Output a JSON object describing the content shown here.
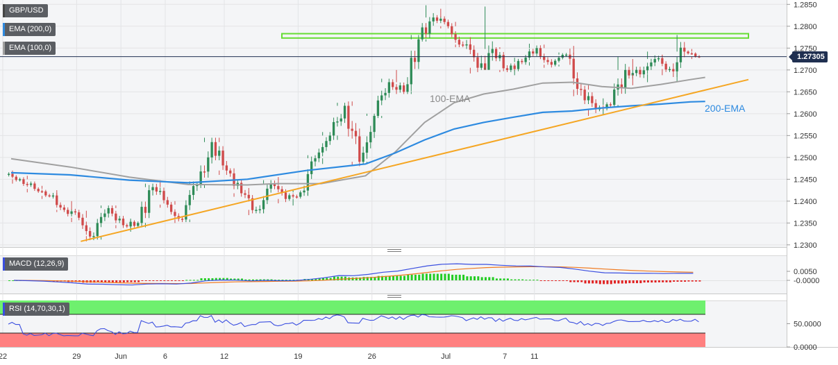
{
  "header": {
    "symbol": "GBP/USD",
    "ema200_label": "EMA (200,0)",
    "ema100_label": "EMA (100,0)"
  },
  "annotations": {
    "ema100": "100-EMA",
    "ema200": "200-EMA"
  },
  "colors": {
    "up": "#2e8b57",
    "down": "#d04a4a",
    "ema100": "#a0a0a0",
    "ema200": "#2d8ae0",
    "trend": "#f5a623",
    "resistance": "#66dd33",
    "macd": "#3a4ee0",
    "signal": "#f07a20"
  },
  "chart_data": [
    {
      "type": "candlestick",
      "title": "GBP/USD",
      "y_ticks": [
        "1.2850",
        "1.2800",
        "1.2750",
        "1.2700",
        "1.2650",
        "1.2600",
        "1.2550",
        "1.2500",
        "1.2450",
        "1.2400",
        "1.2350",
        "1.2300"
      ],
      "x_ticks": [
        {
          "label": "22",
          "day": 22,
          "month": 5
        },
        {
          "label": "29",
          "day": 29,
          "month": 5
        },
        {
          "label": "Jun",
          "day": 1,
          "month": 6
        },
        {
          "label": "6",
          "day": 6,
          "month": 6
        },
        {
          "label": "12",
          "day": 12,
          "month": 6
        },
        {
          "label": "19",
          "day": 19,
          "month": 6
        },
        {
          "label": "26",
          "day": 26,
          "month": 6
        },
        {
          "label": "Jul",
          "day": 1,
          "month": 7
        },
        {
          "label": "7",
          "day": 7,
          "month": 7
        },
        {
          "label": "11",
          "day": 11,
          "month": 7
        }
      ],
      "ylim": [
        1.2295,
        1.286
      ],
      "last_price": "1.27305",
      "ema100": [
        [
          0,
          1.2497
        ],
        [
          4,
          1.2478
        ],
        [
          8,
          1.2455
        ],
        [
          12,
          1.2438
        ],
        [
          16,
          1.2437
        ],
        [
          18,
          1.244
        ],
        [
          21,
          1.244
        ],
        [
          24,
          1.2458
        ],
        [
          26,
          1.2512
        ],
        [
          28,
          1.258
        ],
        [
          30,
          1.2625
        ],
        [
          32,
          1.2645
        ],
        [
          34,
          1.2656
        ],
        [
          36,
          1.267
        ],
        [
          38,
          1.2672
        ],
        [
          40,
          1.2662
        ],
        [
          42,
          1.2658
        ],
        [
          44,
          1.2667
        ],
        [
          46,
          1.2678
        ],
        [
          47,
          1.2683
        ]
      ],
      "ema200": [
        [
          0,
          1.2465
        ],
        [
          4,
          1.246
        ],
        [
          8,
          1.2448
        ],
        [
          12,
          1.2442
        ],
        [
          16,
          1.245
        ],
        [
          20,
          1.247
        ],
        [
          24,
          1.2485
        ],
        [
          26,
          1.251
        ],
        [
          28,
          1.254
        ],
        [
          30,
          1.2565
        ],
        [
          32,
          1.258
        ],
        [
          34,
          1.2592
        ],
        [
          36,
          1.2603
        ],
        [
          38,
          1.2606
        ],
        [
          40,
          1.2613
        ],
        [
          42,
          1.2618
        ],
        [
          44,
          1.2622
        ],
        [
          46,
          1.2627
        ],
        [
          47,
          1.2628
        ]
      ],
      "trendline": [
        [
          5,
          1.2308
        ],
        [
          50,
          1.2678
        ]
      ],
      "resistance_zone": [
        1.2773,
        1.2783
      ],
      "candles_summary": [
        {
          "period": "late May",
          "low": 1.2308,
          "high": 1.247
        },
        {
          "period": "early Jun",
          "low": 1.2368,
          "high": 1.2545
        },
        {
          "period": "mid Jun",
          "low": 1.248,
          "high": 1.27
        },
        {
          "period": "Jun 16-23",
          "low": 1.269,
          "high": 1.2848
        },
        {
          "period": "late Jun",
          "low": 1.259,
          "high": 1.276
        },
        {
          "period": "early Jul",
          "low": 1.266,
          "high": 1.278
        }
      ],
      "candles": [
        [
          1.246,
          1.247,
          1.244,
          1.245
        ],
        [
          1.245,
          1.2458,
          1.242,
          1.2428
        ],
        [
          1.2428,
          1.2435,
          1.2405,
          1.2412
        ],
        [
          1.2412,
          1.2425,
          1.2375,
          1.238
        ],
        [
          1.238,
          1.24,
          1.2352,
          1.2362
        ],
        [
          1.2362,
          1.2378,
          1.2308,
          1.232
        ],
        [
          1.232,
          1.239,
          1.2312,
          1.2384
        ],
        [
          1.2384,
          1.239,
          1.2338,
          1.2345
        ],
        [
          1.2345,
          1.236,
          1.233,
          1.235
        ],
        [
          1.235,
          1.244,
          1.234,
          1.2432
        ],
        [
          1.2432,
          1.2448,
          1.2385,
          1.2392
        ],
        [
          1.2392,
          1.24,
          1.235,
          1.2358
        ],
        [
          1.2358,
          1.2445,
          1.2352,
          1.2438
        ],
        [
          1.2438,
          1.2545,
          1.243,
          1.2535
        ],
        [
          1.2535,
          1.2545,
          1.246,
          1.247
        ],
        [
          1.247,
          1.2475,
          1.241,
          1.2418
        ],
        [
          1.2418,
          1.243,
          1.2368,
          1.238
        ],
        [
          1.238,
          1.2448,
          1.2372,
          1.244
        ],
        [
          1.244,
          1.2455,
          1.2395,
          1.2405
        ],
        [
          1.2405,
          1.2425,
          1.239,
          1.242
        ],
        [
          1.242,
          1.2505,
          1.2412,
          1.2498
        ],
        [
          1.2498,
          1.2558,
          1.2485,
          1.255
        ],
        [
          1.255,
          1.2625,
          1.254,
          1.2618
        ],
        [
          1.2618,
          1.2628,
          1.248,
          1.249
        ],
        [
          1.249,
          1.26,
          1.2485,
          1.2595
        ],
        [
          1.2595,
          1.268,
          1.259,
          1.2672
        ],
        [
          1.2672,
          1.27,
          1.2645,
          1.265
        ],
        [
          1.265,
          1.278,
          1.2645,
          1.277
        ],
        [
          1.277,
          1.2848,
          1.2765,
          1.282
        ],
        [
          1.282,
          1.284,
          1.2795,
          1.28
        ],
        [
          1.28,
          1.281,
          1.2752,
          1.2758
        ],
        [
          1.2758,
          1.2775,
          1.2692,
          1.2705
        ],
        [
          1.2705,
          1.2845,
          1.27,
          1.2748
        ],
        [
          1.2748,
          1.2752,
          1.2695,
          1.27
        ],
        [
          1.27,
          1.2728,
          1.2688,
          1.2718
        ],
        [
          1.2718,
          1.276,
          1.271,
          1.275
        ],
        [
          1.275,
          1.2758,
          1.2705,
          1.2712
        ],
        [
          1.2712,
          1.274,
          1.2708,
          1.2735
        ],
        [
          1.2735,
          1.2755,
          1.264,
          1.2655
        ],
        [
          1.2655,
          1.2668,
          1.2595,
          1.261
        ],
        [
          1.261,
          1.2635,
          1.2598,
          1.262
        ],
        [
          1.262,
          1.273,
          1.2615,
          1.27
        ],
        [
          1.27,
          1.2725,
          1.2665,
          1.269
        ],
        [
          1.269,
          1.2742,
          1.2672,
          1.2725
        ],
        [
          1.2725,
          1.2735,
          1.2688,
          1.2702
        ],
        [
          1.2702,
          1.278,
          1.2672,
          1.2742
        ],
        [
          1.2742,
          1.2748,
          1.2725,
          1.273
        ]
      ]
    },
    {
      "type": "line",
      "title": "MACD (12,26,9)",
      "y_ticks": [
        "0.0050",
        "-0.0000"
      ],
      "series": [
        {
          "name": "MACD"
        },
        {
          "name": "Signal"
        },
        {
          "name": "Histogram"
        }
      ]
    },
    {
      "type": "line",
      "title": "RSI (14,70,30,1)",
      "y_ticks": [
        "50.0000",
        "0.0000"
      ],
      "levels": {
        "overbought": 70,
        "oversold": 30
      },
      "values_summary": {
        "min": 27,
        "max": 67,
        "last": 55
      }
    }
  ]
}
